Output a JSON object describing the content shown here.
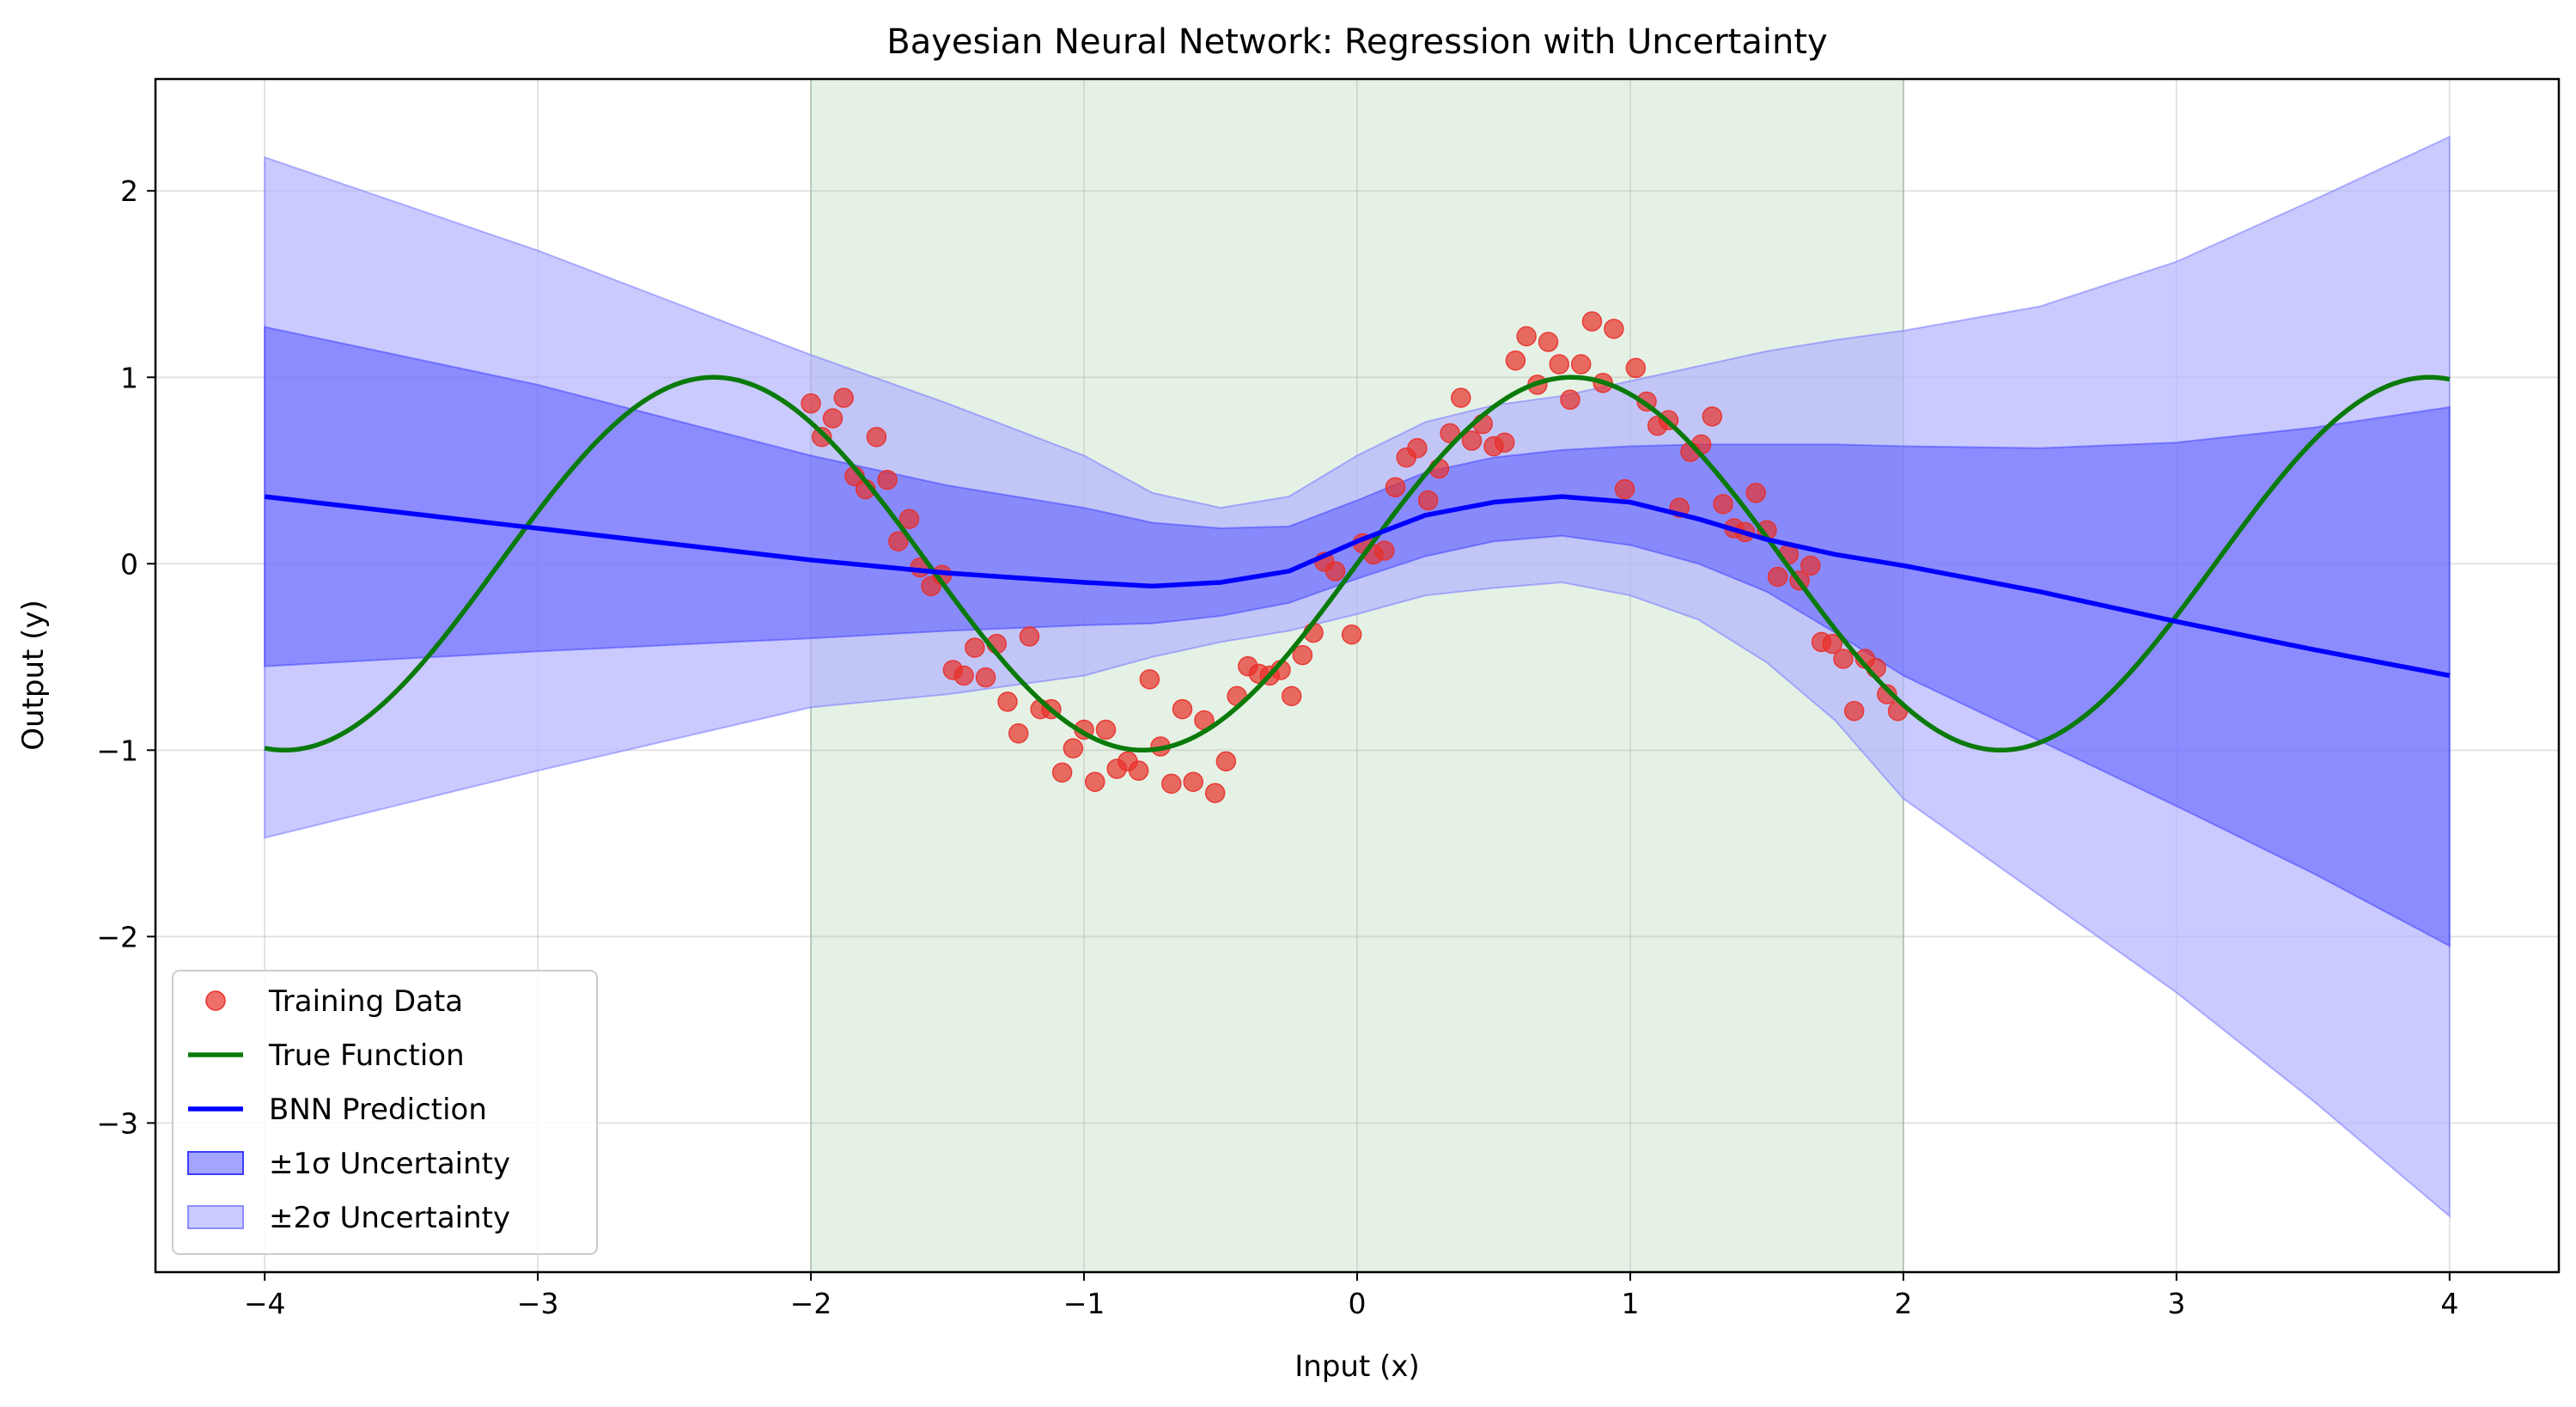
{
  "chart_data": {
    "type": "line",
    "title": "Bayesian Neural Network: Regression with Uncertainty",
    "xlabel": "Input (x)",
    "ylabel": "Output (y)",
    "xlim": [
      -4.4,
      4.4
    ],
    "ylim": [
      -3.8,
      2.6
    ],
    "xticks": [
      -4,
      -3,
      -2,
      -1,
      0,
      1,
      2,
      3,
      4
    ],
    "xtick_labels": [
      "−4",
      "−3",
      "−2",
      "−1",
      "0",
      "1",
      "2",
      "3",
      "4"
    ],
    "yticks": [
      -3,
      -2,
      -1,
      0,
      1,
      2
    ],
    "ytick_labels": [
      "−3",
      "−2",
      "−1",
      "0",
      "1",
      "2"
    ],
    "grid": true,
    "legend_position": "lower-left",
    "training_region": {
      "x": [
        -2,
        2
      ],
      "color": "#cfe6cf"
    },
    "colors": {
      "training": "#e8302a",
      "true_function": "#0a7a0a",
      "prediction": "#0000ff",
      "band1": "#5a5aff",
      "band2": "#b4b4ff"
    },
    "legend": [
      {
        "key": "training",
        "label": "Training Data",
        "kind": "marker"
      },
      {
        "key": "true",
        "label": "True Function",
        "kind": "line-green"
      },
      {
        "key": "pred",
        "label": "BNN Prediction",
        "kind": "line-blue"
      },
      {
        "key": "band1",
        "label": "±1σ Uncertainty",
        "kind": "patch1"
      },
      {
        "key": "band2",
        "label": "±2σ Uncertainty",
        "kind": "patch2"
      }
    ],
    "true_function": {
      "name": "True Function",
      "formula": "sin(2x)"
    },
    "prediction": {
      "name": "BNN Prediction",
      "x": [
        -4,
        -3,
        -2,
        -1.5,
        -1,
        -0.75,
        -0.5,
        -0.25,
        0,
        0.25,
        0.5,
        0.75,
        1,
        1.25,
        1.5,
        1.75,
        2,
        2.5,
        3,
        3.5,
        4
      ],
      "mean": [
        0.36,
        0.19,
        0.02,
        -0.05,
        -0.1,
        -0.12,
        -0.1,
        -0.04,
        0.12,
        0.26,
        0.33,
        0.36,
        0.33,
        0.24,
        0.13,
        0.05,
        -0.01,
        -0.15,
        -0.31,
        -0.46,
        -0.6
      ],
      "upper1": [
        1.27,
        0.96,
        0.58,
        0.42,
        0.3,
        0.22,
        0.19,
        0.2,
        0.34,
        0.49,
        0.57,
        0.61,
        0.63,
        0.64,
        0.64,
        0.64,
        0.63,
        0.62,
        0.65,
        0.73,
        0.84
      ],
      "lower1": [
        -0.55,
        -0.47,
        -0.4,
        -0.36,
        -0.33,
        -0.32,
        -0.28,
        -0.21,
        -0.08,
        0.04,
        0.12,
        0.15,
        0.1,
        0.0,
        -0.15,
        -0.37,
        -0.6,
        -0.95,
        -1.3,
        -1.66,
        -2.05
      ],
      "upper2": [
        2.18,
        1.68,
        1.12,
        0.86,
        0.58,
        0.38,
        0.3,
        0.36,
        0.58,
        0.76,
        0.85,
        0.9,
        0.98,
        1.06,
        1.14,
        1.2,
        1.25,
        1.38,
        1.62,
        1.95,
        2.29
      ],
      "lower2": [
        -1.47,
        -1.11,
        -0.77,
        -0.7,
        -0.6,
        -0.5,
        -0.42,
        -0.36,
        -0.27,
        -0.17,
        -0.13,
        -0.1,
        -0.17,
        -0.3,
        -0.53,
        -0.84,
        -1.26,
        -1.78,
        -2.3,
        -2.88,
        -3.5
      ]
    },
    "training_data": {
      "name": "Training Data",
      "points": [
        [
          -2.0,
          0.86
        ],
        [
          -1.96,
          0.68
        ],
        [
          -1.92,
          0.78
        ],
        [
          -1.88,
          0.89
        ],
        [
          -1.84,
          0.47
        ],
        [
          -1.8,
          0.4
        ],
        [
          -1.76,
          0.68
        ],
        [
          -1.72,
          0.45
        ],
        [
          -1.68,
          0.12
        ],
        [
          -1.64,
          0.24
        ],
        [
          -1.6,
          -0.02
        ],
        [
          -1.56,
          -0.12
        ],
        [
          -1.52,
          -0.06
        ],
        [
          -1.48,
          -0.57
        ],
        [
          -1.44,
          -0.6
        ],
        [
          -1.4,
          -0.45
        ],
        [
          -1.36,
          -0.61
        ],
        [
          -1.32,
          -0.43
        ],
        [
          -1.28,
          -0.74
        ],
        [
          -1.24,
          -0.91
        ],
        [
          -1.2,
          -0.39
        ],
        [
          -1.16,
          -0.78
        ],
        [
          -1.12,
          -0.78
        ],
        [
          -1.08,
          -1.12
        ],
        [
          -1.04,
          -0.99
        ],
        [
          -1.0,
          -0.89
        ],
        [
          -0.96,
          -1.17
        ],
        [
          -0.92,
          -0.89
        ],
        [
          -0.88,
          -1.1
        ],
        [
          -0.84,
          -1.06
        ],
        [
          -0.8,
          -1.11
        ],
        [
          -0.76,
          -0.62
        ],
        [
          -0.72,
          -0.98
        ],
        [
          -0.68,
          -1.18
        ],
        [
          -0.64,
          -0.78
        ],
        [
          -0.6,
          -1.17
        ],
        [
          -0.56,
          -0.84
        ],
        [
          -0.52,
          -1.23
        ],
        [
          -0.48,
          -1.06
        ],
        [
          -0.44,
          -0.71
        ],
        [
          -0.4,
          -0.55
        ],
        [
          -0.36,
          -0.59
        ],
        [
          -0.32,
          -0.6
        ],
        [
          -0.28,
          -0.57
        ],
        [
          -0.24,
          -0.71
        ],
        [
          -0.2,
          -0.49
        ],
        [
          -0.16,
          -0.37
        ],
        [
          -0.12,
          0.01
        ],
        [
          -0.08,
          -0.04
        ],
        [
          -0.02,
          -0.38
        ],
        [
          0.02,
          0.11
        ],
        [
          0.06,
          0.05
        ],
        [
          0.1,
          0.07
        ],
        [
          0.14,
          0.41
        ],
        [
          0.18,
          0.57
        ],
        [
          0.22,
          0.62
        ],
        [
          0.26,
          0.34
        ],
        [
          0.3,
          0.51
        ],
        [
          0.34,
          0.7
        ],
        [
          0.38,
          0.89
        ],
        [
          0.42,
          0.66
        ],
        [
          0.46,
          0.75
        ],
        [
          0.5,
          0.63
        ],
        [
          0.54,
          0.65
        ],
        [
          0.58,
          1.09
        ],
        [
          0.62,
          1.22
        ],
        [
          0.66,
          0.96
        ],
        [
          0.7,
          1.19
        ],
        [
          0.74,
          1.07
        ],
        [
          0.78,
          0.88
        ],
        [
          0.82,
          1.07
        ],
        [
          0.86,
          1.3
        ],
        [
          0.9,
          0.97
        ],
        [
          0.94,
          1.26
        ],
        [
          0.98,
          0.4
        ],
        [
          1.02,
          1.05
        ],
        [
          1.06,
          0.87
        ],
        [
          1.1,
          0.74
        ],
        [
          1.14,
          0.77
        ],
        [
          1.18,
          0.3
        ],
        [
          1.22,
          0.6
        ],
        [
          1.26,
          0.64
        ],
        [
          1.3,
          0.79
        ],
        [
          1.34,
          0.32
        ],
        [
          1.38,
          0.19
        ],
        [
          1.42,
          0.17
        ],
        [
          1.46,
          0.38
        ],
        [
          1.5,
          0.18
        ],
        [
          1.54,
          -0.07
        ],
        [
          1.58,
          0.05
        ],
        [
          1.62,
          -0.09
        ],
        [
          1.66,
          -0.01
        ],
        [
          1.7,
          -0.42
        ],
        [
          1.74,
          -0.43
        ],
        [
          1.78,
          -0.51
        ],
        [
          1.82,
          -0.79
        ],
        [
          1.86,
          -0.51
        ],
        [
          1.9,
          -0.56
        ],
        [
          1.94,
          -0.7
        ],
        [
          1.98,
          -0.79
        ]
      ]
    }
  }
}
